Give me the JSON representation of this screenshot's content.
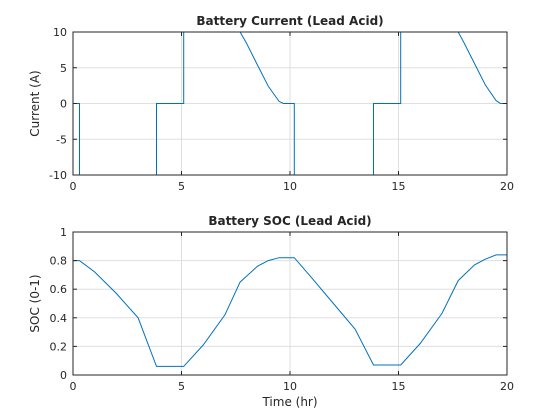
{
  "chart_data": [
    {
      "type": "line",
      "title": "Battery Current (Lead Acid)",
      "xlabel": "",
      "ylabel": "Current (A)",
      "xlim": [
        0,
        20
      ],
      "ylim": [
        -10,
        10
      ],
      "grid": true,
      "xticks": [
        0,
        5,
        10,
        15,
        20
      ],
      "yticks": [
        -10,
        -5,
        0,
        5,
        10
      ],
      "xtick_labels": [
        "0",
        "5",
        "10",
        "15",
        "20"
      ],
      "ytick_labels": [
        "-10",
        "-5",
        "0",
        "5",
        "10"
      ],
      "color": "#0072bd",
      "series": [
        {
          "x": [
            0,
            0.3,
            0.3,
            3.85,
            3.85,
            5.1,
            5.1,
            7.7,
            8.0,
            8.5,
            9.0,
            9.5,
            9.7,
            10.2,
            10.2,
            13.85,
            13.85,
            15.1,
            15.1,
            17.75,
            18.0,
            18.5,
            19.0,
            19.5,
            19.7,
            20
          ],
          "y": [
            0,
            0,
            -10,
            -10,
            0,
            0,
            10,
            10,
            8.4,
            5.4,
            2.4,
            0.3,
            0,
            0,
            -10,
            -10,
            0,
            0,
            10,
            10,
            8.6,
            5.6,
            2.6,
            0.4,
            0,
            0
          ]
        }
      ]
    },
    {
      "type": "line",
      "title": "Battery SOC (Lead Acid)",
      "xlabel": "Time (hr)",
      "ylabel": "SOC (0-1)",
      "xlim": [
        0,
        20
      ],
      "ylim": [
        0,
        1
      ],
      "grid": true,
      "xticks": [
        0,
        5,
        10,
        15,
        20
      ],
      "yticks": [
        0,
        0.2,
        0.4,
        0.6,
        0.8,
        1
      ],
      "xtick_labels": [
        "0",
        "5",
        "10",
        "15",
        "20"
      ],
      "ytick_labels": [
        "0",
        "0.2",
        "0.4",
        "0.6",
        "0.8",
        "1"
      ],
      "color": "#0072bd",
      "series": [
        {
          "x": [
            0,
            0.3,
            1,
            2,
            3,
            3.85,
            5.1,
            6,
            7,
            7.7,
            8.5,
            9,
            9.5,
            10.2,
            11,
            12,
            13,
            13.85,
            15.1,
            16,
            17,
            17.75,
            18.5,
            19,
            19.5,
            20
          ],
          "y": [
            0.8,
            0.8,
            0.72,
            0.57,
            0.4,
            0.06,
            0.06,
            0.21,
            0.42,
            0.65,
            0.76,
            0.8,
            0.82,
            0.82,
            0.68,
            0.5,
            0.32,
            0.07,
            0.07,
            0.22,
            0.43,
            0.66,
            0.77,
            0.81,
            0.84,
            0.84
          ]
        }
      ]
    }
  ]
}
